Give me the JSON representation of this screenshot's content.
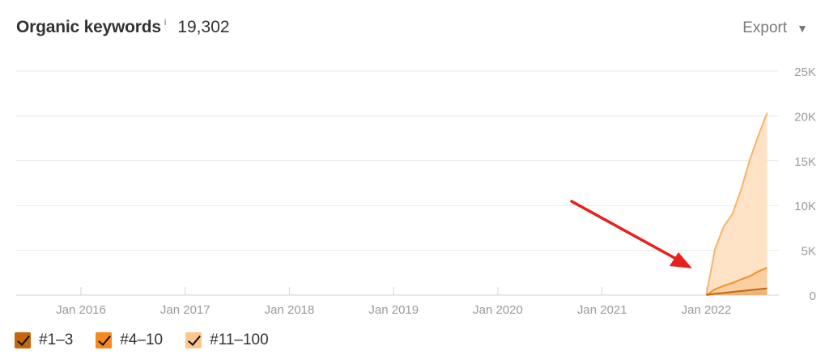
{
  "header": {
    "title": "Organic keywords",
    "info": "i",
    "count": "19,302",
    "export_label": "Export",
    "export_caret": "▼"
  },
  "colors": {
    "top3": "#c4670e",
    "top10": "#f59029",
    "top100_line": "#f7b46c",
    "top100_fill": "#fde2c6",
    "arrow": "#e8201c",
    "grid": "#e9e9e9",
    "axis": "#d6d6d6",
    "tick": "#9a9a9a"
  },
  "legend": [
    {
      "label": "#1–3",
      "color": "#c4670e"
    },
    {
      "label": "#4–10",
      "color": "#f58a1f"
    },
    {
      "label": "#11–100",
      "color": "#fcc68f"
    }
  ],
  "chart_data": {
    "type": "area",
    "title": "Organic keywords",
    "stacked": true,
    "x_ticks": [
      "Jan 2016",
      "Jan 2017",
      "Jan 2018",
      "Jan 2019",
      "Jan 2020",
      "Jan 2021",
      "Jan 2022"
    ],
    "y_ticks": [
      "0",
      "5K",
      "10K",
      "15K",
      "20K",
      "25K"
    ],
    "ylim": [
      0,
      25000
    ],
    "x": [
      "2022-01",
      "2022-02",
      "2022-03",
      "2022-04",
      "2022-05",
      "2022-06",
      "2022-07",
      "2022-08"
    ],
    "series": [
      {
        "name": "#1–3",
        "values": [
          0,
          150,
          250,
          350,
          450,
          550,
          650,
          750
        ]
      },
      {
        "name": "#4–10",
        "values": [
          0,
          500,
          800,
          1000,
          1300,
          1550,
          2000,
          2300
        ]
      },
      {
        "name": "#11–100",
        "values": [
          0,
          4500,
          6600,
          7700,
          10000,
          13000,
          15200,
          17300
        ]
      }
    ],
    "totals": [
      0,
      5150,
      7650,
      9050,
      11750,
      15100,
      17850,
      20350
    ],
    "grid": true,
    "legend_position": "bottom-left",
    "annotation": "red arrow pointing to Jan 2022 start of growth"
  }
}
